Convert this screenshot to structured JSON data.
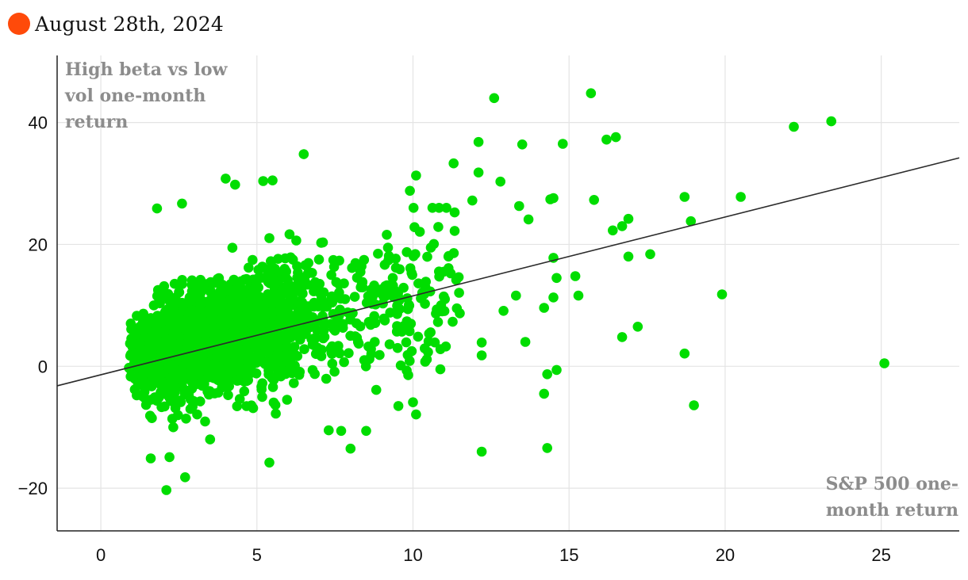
{
  "header": {
    "date": "August 28th, 2024"
  },
  "colors": {
    "dot": "#00dd00",
    "accent": "#ff4a0a",
    "trend": "#2b2b2b",
    "grid": "#e4e4e4",
    "annotation": "#8c8c8c"
  },
  "chart_data": {
    "type": "scatter",
    "title": "",
    "ylabel_annotation": [
      "High beta vs low",
      "vol one-month",
      "return"
    ],
    "xlabel_annotation": [
      "S&P 500 one-",
      "month return"
    ],
    "xlim": [
      -1.4,
      27.5
    ],
    "ylim": [
      -27,
      51
    ],
    "xticks": [
      0,
      5,
      10,
      15,
      20,
      25
    ],
    "yticks": [
      -20,
      0,
      20,
      40
    ],
    "ytick_labels": [
      "−20",
      "0",
      "20",
      "40"
    ],
    "grid": true,
    "trendline": {
      "x": [
        -1.4,
        27.5
      ],
      "y": [
        -3.2,
        34.2
      ]
    },
    "outliers": [
      [
        15.7,
        44.8
      ],
      [
        12.6,
        44.0
      ],
      [
        23.4,
        40.2
      ],
      [
        22.2,
        39.3
      ],
      [
        16.2,
        37.2
      ],
      [
        16.5,
        37.6
      ],
      [
        12.1,
        36.8
      ],
      [
        13.5,
        36.4
      ],
      [
        14.8,
        36.5
      ],
      [
        6.5,
        34.8
      ],
      [
        11.3,
        33.3
      ],
      [
        12.1,
        31.8
      ],
      [
        10.1,
        31.3
      ],
      [
        4.0,
        30.8
      ],
      [
        4.3,
        29.8
      ],
      [
        5.2,
        30.4
      ],
      [
        5.5,
        30.5
      ],
      [
        12.8,
        30.3
      ],
      [
        9.9,
        28.8
      ],
      [
        18.7,
        27.8
      ],
      [
        20.5,
        27.8
      ],
      [
        14.4,
        27.4
      ],
      [
        14.5,
        27.6
      ],
      [
        15.8,
        27.3
      ],
      [
        11.9,
        27.2
      ],
      [
        13.4,
        26.3
      ],
      [
        2.6,
        26.7
      ],
      [
        1.8,
        25.9
      ],
      [
        13.7,
        24.1
      ],
      [
        16.9,
        24.2
      ],
      [
        16.7,
        23.0
      ],
      [
        16.4,
        22.3
      ],
      [
        18.9,
        23.8
      ],
      [
        17.6,
        18.4
      ],
      [
        16.9,
        18.0
      ],
      [
        14.5,
        17.8
      ],
      [
        15.2,
        14.8
      ],
      [
        14.6,
        14.5
      ],
      [
        15.3,
        11.6
      ],
      [
        19.9,
        11.8
      ],
      [
        14.5,
        11.3
      ],
      [
        14.2,
        9.6
      ],
      [
        17.2,
        6.5
      ],
      [
        16.7,
        4.8
      ],
      [
        13.6,
        4.0
      ],
      [
        18.7,
        2.1
      ],
      [
        12.2,
        3.9
      ],
      [
        14.6,
        -0.6
      ],
      [
        14.3,
        -1.3
      ],
      [
        14.2,
        -4.5
      ],
      [
        19.0,
        -6.4
      ],
      [
        25.1,
        0.5
      ],
      [
        14.3,
        -13.4
      ],
      [
        12.2,
        -14.0
      ],
      [
        10.0,
        -5.9
      ],
      [
        10.1,
        -7.9
      ],
      [
        8.5,
        -10.6
      ],
      [
        7.7,
        -10.6
      ],
      [
        7.3,
        -10.5
      ],
      [
        8.0,
        -13.5
      ],
      [
        5.4,
        -15.8
      ],
      [
        3.5,
        -12.0
      ],
      [
        2.2,
        -14.9
      ],
      [
        1.6,
        -15.1
      ],
      [
        2.7,
        -18.2
      ],
      [
        2.1,
        -20.3
      ],
      [
        9.8,
        -0.7
      ],
      [
        12.2,
        1.8
      ],
      [
        11.5,
        8.7
      ],
      [
        12.9,
        9.1
      ],
      [
        13.3,
        11.6
      ]
    ],
    "cluster": {
      "point_count": 2200,
      "x_range": [
        0.9,
        11.5
      ],
      "x_mode": 2.5,
      "y_center_at_x0": 0.3,
      "y_slope": 1.15,
      "y_spread": 5.5,
      "y_clip": [
        -10,
        26
      ]
    }
  }
}
